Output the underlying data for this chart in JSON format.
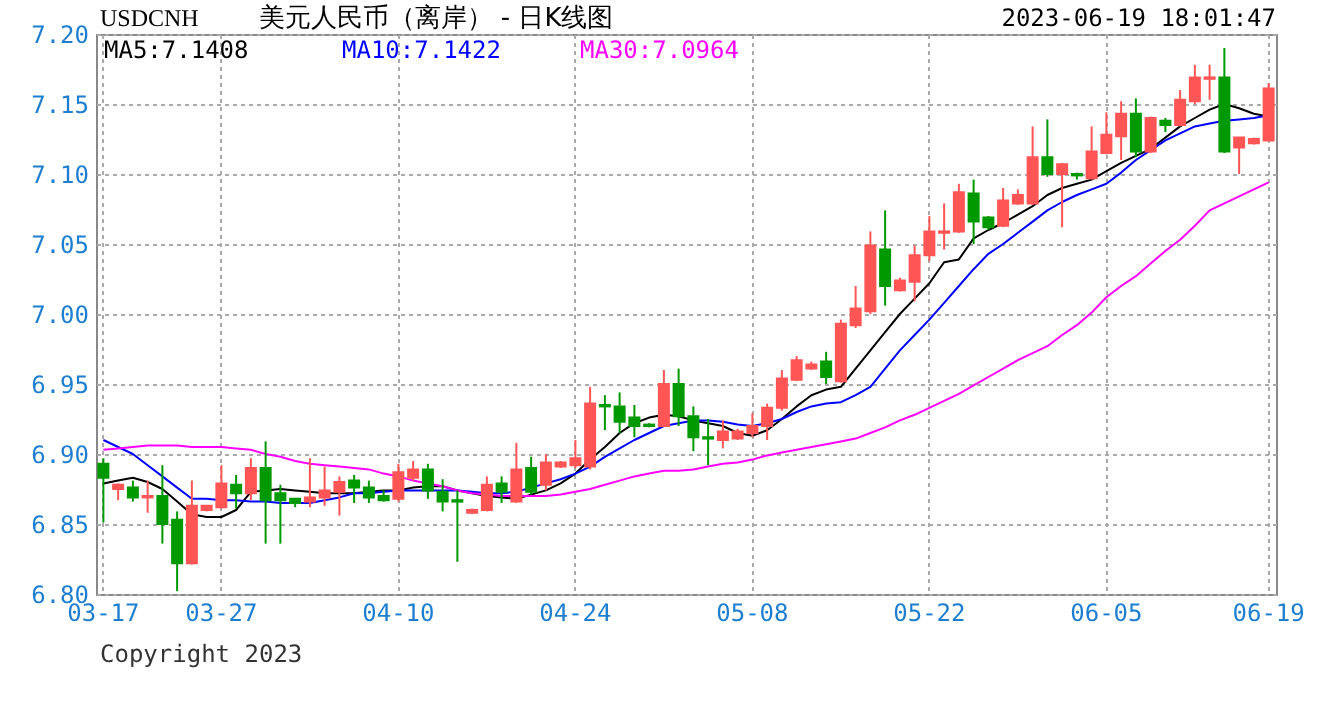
{
  "chart_data": {
    "type": "candlestick",
    "title": "美元人民币（离岸） - 日K线图",
    "subtitle": "USDCNH",
    "annotations": [
      "2023-06-19 18:01:47",
      "Copyright 2023"
    ],
    "categories": [
      "03-17",
      null,
      null,
      null,
      null,
      null,
      null,
      null,
      "03-27",
      null,
      null,
      null,
      null,
      null,
      null,
      null,
      null,
      null,
      null,
      null,
      "04-10",
      null,
      null,
      null,
      null,
      null,
      null,
      null,
      null,
      null,
      null,
      null,
      "04-24",
      null,
      null,
      null,
      null,
      null,
      null,
      null,
      null,
      null,
      null,
      null,
      "05-08",
      null,
      null,
      null,
      null,
      null,
      null,
      null,
      null,
      null,
      null,
      null,
      "05-22",
      null,
      null,
      null,
      null,
      null,
      null,
      null,
      null,
      null,
      null,
      null,
      "06-05",
      null,
      null,
      null,
      null,
      null,
      null,
      null,
      null,
      null,
      null,
      "06-19"
    ],
    "ohlc": [
      [
        6.893,
        6.897,
        6.851,
        6.883
      ],
      [
        6.875,
        6.879,
        6.867,
        6.878
      ],
      [
        6.876,
        6.881,
        6.866,
        6.869
      ],
      [
        6.869,
        6.881,
        6.858,
        6.87
      ],
      [
        6.87,
        6.892,
        6.836,
        6.85
      ],
      [
        6.853,
        6.859,
        6.802,
        6.822
      ],
      [
        6.822,
        6.881,
        6.821,
        6.863
      ],
      [
        6.86,
        6.863,
        6.859,
        6.863
      ],
      [
        6.862,
        6.892,
        6.861,
        6.879
      ],
      [
        6.878,
        6.885,
        6.861,
        6.872
      ],
      [
        6.872,
        6.897,
        6.867,
        6.89
      ],
      [
        6.89,
        6.909,
        6.836,
        6.867
      ],
      [
        6.872,
        6.878,
        6.836,
        6.867
      ],
      [
        6.868,
        6.868,
        6.862,
        6.865
      ],
      [
        6.866,
        6.897,
        6.862,
        6.869
      ],
      [
        6.869,
        6.891,
        6.863,
        6.874
      ],
      [
        6.873,
        6.884,
        6.856,
        6.88
      ],
      [
        6.881,
        6.885,
        6.865,
        6.876
      ],
      [
        6.876,
        6.881,
        6.865,
        6.869
      ],
      [
        6.87,
        6.874,
        6.866,
        6.867
      ],
      [
        6.868,
        6.893,
        6.866,
        6.887
      ],
      [
        6.883,
        6.895,
        6.881,
        6.889
      ],
      [
        6.889,
        6.893,
        6.868,
        6.874
      ],
      [
        6.873,
        6.882,
        6.859,
        6.866
      ],
      [
        6.867,
        6.874,
        6.823,
        6.866
      ],
      [
        6.858,
        6.861,
        6.857,
        6.86
      ],
      [
        6.86,
        6.884,
        6.859,
        6.878
      ],
      [
        6.879,
        6.884,
        6.865,
        6.873
      ],
      [
        6.866,
        6.908,
        6.865,
        6.889
      ],
      [
        6.89,
        6.898,
        6.871,
        6.873
      ],
      [
        6.878,
        6.9,
        6.874,
        6.894
      ],
      [
        6.891,
        6.895,
        6.89,
        6.894
      ],
      [
        6.892,
        6.91,
        6.89,
        6.897
      ],
      [
        6.891,
        6.948,
        6.889,
        6.936
      ],
      [
        6.935,
        6.942,
        6.917,
        6.934
      ],
      [
        6.934,
        6.944,
        6.915,
        6.923
      ],
      [
        6.926,
        6.935,
        6.912,
        6.92
      ],
      [
        6.921,
        6.922,
        6.919,
        6.92
      ],
      [
        6.92,
        6.96,
        6.92,
        6.95
      ],
      [
        6.95,
        6.961,
        6.92,
        6.927
      ],
      [
        6.927,
        6.934,
        6.902,
        6.912
      ],
      [
        6.912,
        6.925,
        6.892,
        6.911
      ],
      [
        6.91,
        6.924,
        6.904,
        6.916
      ],
      [
        6.911,
        6.918,
        6.91,
        6.916
      ],
      [
        6.915,
        6.929,
        6.912,
        6.92
      ],
      [
        6.92,
        6.936,
        6.91,
        6.933
      ],
      [
        6.933,
        6.96,
        6.931,
        6.954
      ],
      [
        6.953,
        6.97,
        6.952,
        6.967
      ],
      [
        6.961,
        6.966,
        6.96,
        6.964
      ],
      [
        6.966,
        6.973,
        6.95,
        6.955
      ],
      [
        6.952,
        6.996,
        6.951,
        6.993
      ],
      [
        6.992,
        7.02,
        6.99,
        7.004
      ],
      [
        7.002,
        7.059,
        7.0,
        7.049
      ],
      [
        7.046,
        7.074,
        7.006,
        7.02
      ],
      [
        7.017,
        7.026,
        7.016,
        7.024
      ],
      [
        7.023,
        7.049,
        7.009,
        7.042
      ],
      [
        7.042,
        7.07,
        7.038,
        7.059
      ],
      [
        7.058,
        7.079,
        7.046,
        7.059
      ],
      [
        7.059,
        7.093,
        7.058,
        7.087
      ],
      [
        7.086,
        7.096,
        7.05,
        7.066
      ],
      [
        7.069,
        7.07,
        7.06,
        7.062
      ],
      [
        7.063,
        7.09,
        7.062,
        7.081
      ],
      [
        7.079,
        7.089,
        7.078,
        7.085
      ],
      [
        7.079,
        7.134,
        7.078,
        7.112
      ],
      [
        7.112,
        7.139,
        7.098,
        7.1
      ],
      [
        7.1,
        7.108,
        7.062,
        7.107
      ],
      [
        7.1,
        7.101,
        7.096,
        7.099
      ],
      [
        7.097,
        7.134,
        7.096,
        7.116
      ],
      [
        7.115,
        7.144,
        7.114,
        7.128
      ],
      [
        7.127,
        7.152,
        7.11,
        7.143
      ],
      [
        7.143,
        7.154,
        7.112,
        7.116
      ],
      [
        7.116,
        7.141,
        7.115,
        7.14
      ],
      [
        7.138,
        7.14,
        7.13,
        7.135
      ],
      [
        7.135,
        7.16,
        7.134,
        7.153
      ],
      [
        7.152,
        7.178,
        7.15,
        7.169
      ],
      [
        7.168,
        7.178,
        7.153,
        7.169
      ],
      [
        7.169,
        7.19,
        7.115,
        7.116
      ],
      [
        7.119,
        7.126,
        7.1,
        7.126
      ],
      [
        7.122,
        7.126,
        7.121,
        7.125
      ],
      [
        7.124,
        7.165,
        7.124,
        7.161
      ]
    ],
    "colors": [
      "#009900",
      "#ff5555",
      "#009900",
      "#ff5555",
      "#009900",
      "#009900",
      "#ff5555",
      "#ff5555",
      "#ff5555",
      "#009900",
      "#ff5555",
      "#009900",
      "#009900",
      "#009900",
      "#ff5555",
      "#ff5555",
      "#ff5555",
      "#009900",
      "#009900",
      "#009900",
      "#ff5555",
      "#ff5555",
      "#009900",
      "#009900",
      "#009900",
      "#ff5555",
      "#ff5555",
      "#009900",
      "#ff5555",
      "#009900",
      "#ff5555",
      "#ff5555",
      "#ff5555",
      "#ff5555",
      "#009900",
      "#009900",
      "#009900",
      "#009900",
      "#ff5555",
      "#009900",
      "#009900",
      "#009900",
      "#ff5555",
      "#ff5555",
      "#ff5555",
      "#ff5555",
      "#ff5555",
      "#ff5555",
      "#ff5555",
      "#009900",
      "#ff5555",
      "#ff5555",
      "#ff5555",
      "#009900",
      "#ff5555",
      "#ff5555",
      "#ff5555",
      "#ff5555",
      "#ff5555",
      "#009900",
      "#009900",
      "#ff5555",
      "#ff5555",
      "#ff5555",
      "#009900",
      "#ff5555",
      "#009900",
      "#ff5555",
      "#ff5555",
      "#ff5555",
      "#009900",
      "#ff5555",
      "#009900",
      "#ff5555",
      "#ff5555",
      "#ff5555",
      "#009900",
      "#ff5555",
      "#ff5555",
      "#ff5555"
    ],
    "series": [
      {
        "type": "line",
        "name": "MA5:7.1408",
        "color": "#000000",
        "values": [
          6.879,
          6.881,
          6.883,
          6.88,
          6.875,
          6.866,
          6.857,
          6.855,
          6.855,
          6.86,
          6.873,
          6.874,
          6.875,
          6.874,
          6.873,
          6.872,
          6.872,
          6.872,
          6.873,
          6.874,
          6.874,
          6.876,
          6.877,
          6.877,
          6.874,
          6.872,
          6.87,
          6.869,
          6.868,
          6.871,
          6.874,
          6.879,
          6.886,
          6.896,
          6.905,
          6.915,
          6.922,
          6.926,
          6.928,
          6.927,
          6.924,
          6.922,
          6.92,
          6.915,
          6.913,
          6.917,
          6.925,
          6.934,
          6.942,
          6.946,
          6.948,
          6.961,
          6.974,
          6.987,
          7.0,
          7.011,
          7.022,
          7.037,
          7.039,
          7.054,
          7.06,
          7.065,
          7.071,
          7.077,
          7.085,
          7.09,
          7.093,
          7.096,
          7.102,
          7.108,
          7.113,
          7.118,
          7.126,
          7.134,
          7.14,
          7.146,
          7.15,
          7.147,
          7.143,
          7.141
        ]
      },
      {
        "type": "line",
        "name": "MA10:7.1422",
        "color": "#0000ff",
        "values": [
          6.91,
          6.905,
          6.9,
          6.892,
          6.884,
          6.876,
          6.868,
          6.868,
          6.867,
          6.867,
          6.866,
          6.866,
          6.865,
          6.865,
          6.865,
          6.867,
          6.869,
          6.872,
          6.872,
          6.873,
          6.874,
          6.874,
          6.874,
          6.874,
          6.874,
          6.873,
          6.872,
          6.872,
          6.873,
          6.876,
          6.879,
          6.882,
          6.886,
          6.891,
          6.898,
          6.904,
          6.91,
          6.915,
          6.92,
          6.922,
          6.924,
          6.924,
          6.923,
          6.921,
          6.92,
          6.922,
          6.925,
          6.93,
          6.934,
          6.936,
          6.937,
          6.942,
          6.948,
          6.961,
          6.974,
          6.985,
          6.996,
          7.008,
          7.02,
          7.032,
          7.043,
          7.05,
          7.058,
          7.066,
          7.074,
          7.08,
          7.085,
          7.089,
          7.093,
          7.101,
          7.11,
          7.117,
          7.124,
          7.129,
          7.134,
          7.136,
          7.138,
          7.139,
          7.14,
          7.142
        ]
      },
      {
        "type": "line",
        "name": "MA30:7.0964",
        "color": "#ff00ff",
        "values": [
          6.903,
          6.904,
          6.905,
          6.906,
          6.906,
          6.906,
          6.905,
          6.905,
          6.905,
          6.904,
          6.903,
          6.9,
          6.898,
          6.895,
          6.893,
          6.892,
          6.891,
          6.89,
          6.889,
          6.886,
          6.884,
          6.881,
          6.879,
          6.877,
          6.874,
          6.872,
          6.871,
          6.87,
          6.87,
          6.87,
          6.87,
          6.871,
          6.873,
          6.875,
          6.878,
          6.881,
          6.884,
          6.886,
          6.888,
          6.888,
          6.889,
          6.891,
          6.893,
          6.894,
          6.896,
          6.899,
          6.901,
          6.903,
          6.905,
          6.907,
          6.909,
          6.911,
          6.915,
          6.919,
          6.924,
          6.928,
          6.933,
          6.938,
          6.943,
          6.949,
          6.955,
          6.961,
          6.967,
          6.972,
          6.977,
          6.985,
          6.992,
          7.001,
          7.012,
          7.02,
          7.027,
          7.036,
          7.045,
          7.053,
          7.063,
          7.074,
          7.079,
          7.084,
          7.089,
          7.094
        ]
      }
    ],
    "ylim": [
      6.8,
      7.2
    ],
    "yticks": [
      {
        "value": 6.8,
        "label": "6.80"
      },
      {
        "value": 6.85,
        "label": "6.85"
      },
      {
        "value": 6.9,
        "label": "6.90"
      },
      {
        "value": 6.95,
        "label": "6.95"
      },
      {
        "value": 7.0,
        "label": "7.00"
      },
      {
        "value": 7.05,
        "label": "7.05"
      },
      {
        "value": 7.1,
        "label": "7.10"
      },
      {
        "value": 7.15,
        "label": "7.15"
      },
      {
        "value": 7.2,
        "label": "7.20"
      }
    ],
    "grid": true,
    "legend": "top left",
    "marker": "none",
    "line_style": "solid"
  }
}
